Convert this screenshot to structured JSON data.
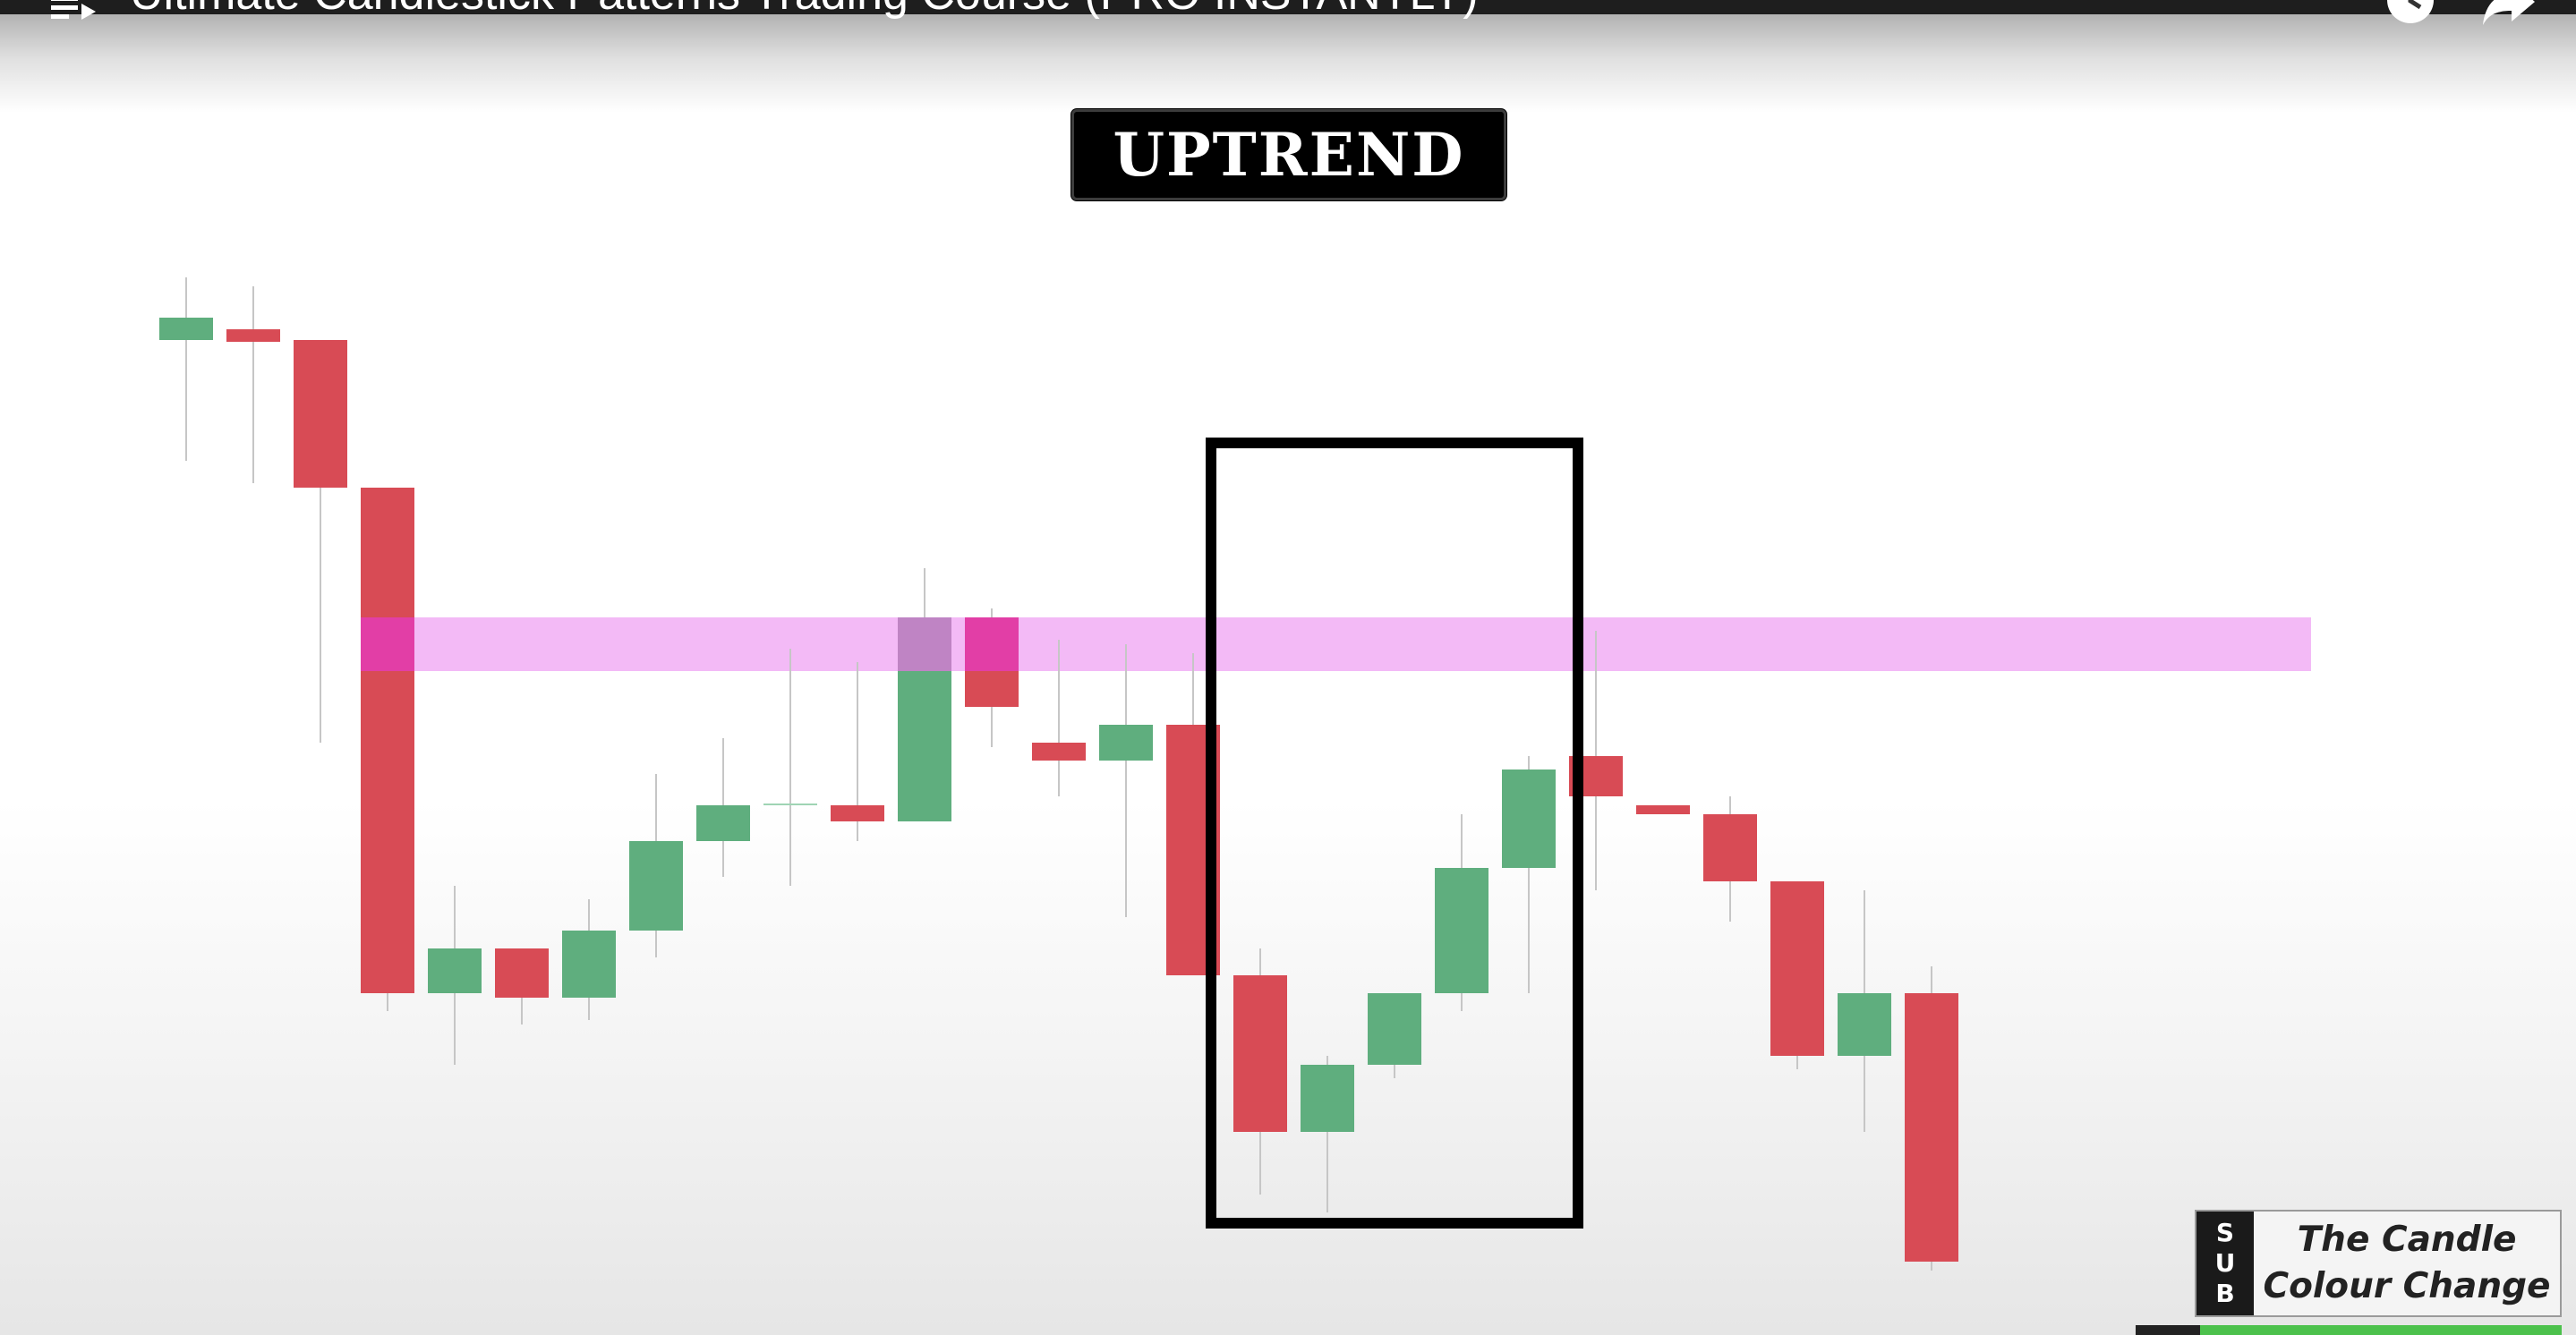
{
  "window": {
    "title": "Ultimate Candlestick Patterns Trading Course (PRO INSTANTLY)"
  },
  "icons": {
    "playlist": "playlist-icon",
    "watch_later": "watch-later-icon",
    "share": "share-icon"
  },
  "overlay": {
    "label": "UPTREND"
  },
  "badge": {
    "letters": [
      "S",
      "U",
      "B"
    ],
    "line1": "The Candle",
    "line2": "Colour Change",
    "progress": 1.0
  },
  "colors": {
    "bullish": "#5fae7e",
    "bearish": "#d84b55",
    "resistance_zone": "#f3baf6",
    "overlap_bullish": "#bf84c4",
    "overlap_bearish": "#e23ea6"
  },
  "chart_data": {
    "type": "candlestick",
    "resistance_zone": [
      3.0,
      3.6
    ],
    "candles": [
      {
        "dir": "up",
        "open": 6.7,
        "close": 6.95,
        "high": 7.4,
        "low": 5.35
      },
      {
        "dir": "down",
        "open": 6.82,
        "close": 6.68,
        "high": 7.3,
        "low": 5.1
      },
      {
        "dir": "down",
        "open": 6.7,
        "close": 5.05,
        "high": 6.7,
        "low": 2.2
      },
      {
        "dir": "down",
        "open": 5.05,
        "close": -0.6,
        "high": 5.05,
        "low": -0.8
      },
      {
        "dir": "up",
        "open": -0.6,
        "close": -0.1,
        "high": 0.6,
        "low": -1.4
      },
      {
        "dir": "down",
        "open": -0.1,
        "close": -0.65,
        "high": -0.1,
        "low": -0.95
      },
      {
        "dir": "up",
        "open": -0.65,
        "close": 0.1,
        "high": 0.45,
        "low": -0.9
      },
      {
        "dir": "up",
        "open": 0.1,
        "close": 1.1,
        "high": 1.85,
        "low": -0.2
      },
      {
        "dir": "up",
        "open": 1.1,
        "close": 1.5,
        "high": 2.25,
        "low": 0.7
      },
      {
        "dir": "up",
        "open": 1.5,
        "close": 1.52,
        "high": 3.25,
        "low": 0.6
      },
      {
        "dir": "down",
        "open": 1.5,
        "close": 1.32,
        "high": 3.1,
        "low": 1.1
      },
      {
        "dir": "up",
        "open": 1.32,
        "close": 3.6,
        "high": 4.15,
        "low": 1.32
      },
      {
        "dir": "down",
        "open": 3.6,
        "close": 2.6,
        "high": 3.7,
        "low": 2.15
      },
      {
        "dir": "down",
        "open": 2.2,
        "close": 2.0,
        "high": 3.35,
        "low": 1.6
      },
      {
        "dir": "up",
        "open": 2.0,
        "close": 2.4,
        "high": 3.3,
        "low": 0.25
      },
      {
        "dir": "down",
        "open": 2.4,
        "close": -0.4,
        "high": 3.2,
        "low": -0.4
      },
      {
        "dir": "down",
        "open": -0.4,
        "close": -2.15,
        "high": -0.1,
        "low": -2.85
      },
      {
        "dir": "up",
        "open": -2.15,
        "close": -1.4,
        "high": -1.3,
        "low": -3.05
      },
      {
        "dir": "up",
        "open": -1.4,
        "close": -0.6,
        "high": -0.6,
        "low": -1.55
      },
      {
        "dir": "up",
        "open": -0.6,
        "close": 0.8,
        "high": 1.4,
        "low": -0.8
      },
      {
        "dir": "up",
        "open": 0.8,
        "close": 1.9,
        "high": 2.05,
        "low": -0.6
      },
      {
        "dir": "down",
        "open": 2.05,
        "close": 1.6,
        "high": 3.45,
        "low": 0.55
      },
      {
        "dir": "down",
        "open": 1.5,
        "close": 1.4,
        "high": 1.5,
        "low": 1.4
      },
      {
        "dir": "down",
        "open": 1.4,
        "close": 0.65,
        "high": 1.6,
        "low": 0.2
      },
      {
        "dir": "down",
        "open": 0.65,
        "close": -1.3,
        "high": 0.65,
        "low": -1.45
      },
      {
        "dir": "up",
        "open": -1.3,
        "close": -0.6,
        "high": 0.55,
        "low": -2.15
      },
      {
        "dir": "down",
        "open": -0.6,
        "close": -3.6,
        "high": -0.3,
        "low": -3.7
      }
    ]
  }
}
